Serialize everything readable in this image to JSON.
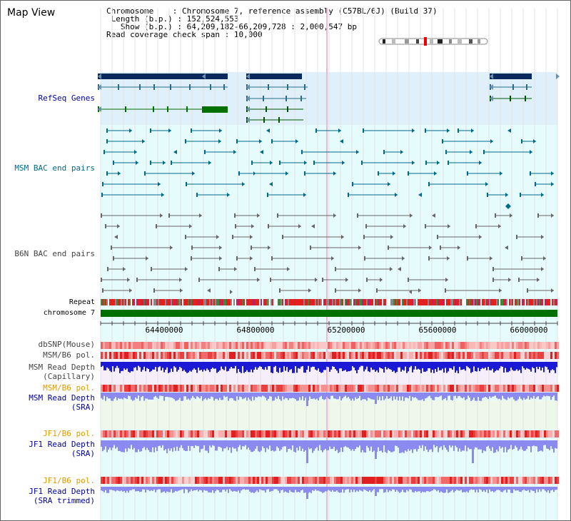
{
  "title": "Map View",
  "info": {
    "chromosome_label": "Chromosome",
    "chromosome_value": "Chromosome 7, reference assembly (C57BL/6J) (Build 37)",
    "length_label": "Length (b.p.)",
    "length_value": "152,524,553",
    "show_label": "Show (b.p.)",
    "show_value": "64,209,182-66,209,728 : 2,000,547 bp",
    "coverage_label": "Read coverage check span",
    "coverage_value": "10,000"
  },
  "tracks": {
    "refseq": "RefSeq Genes",
    "msm_bac": "MSM BAC end pairs",
    "b6n_bac": "B6N BAC end pairs",
    "repeat": "Repeat",
    "chromosome": "chromosome 7",
    "dbsnp": "dbSNP(Mouse)",
    "msm_b6_pol": "MSM/B6 pol.",
    "msm_depth_cap_1": "MSM Read Depth",
    "msm_depth_cap_2": "(Capillary)",
    "msm_b6_pol_2": "MSM/B6 pol.",
    "msm_depth_sra_1": "MSM Read Depth",
    "msm_depth_sra_2": "(SRA)",
    "jf1_b6_pol": "JF1/B6 pol.",
    "jf1_depth_1": "JF1 Read Depth",
    "jf1_depth_2": "(SRA)",
    "jf1_b6_pol_2": "JF1/B6 pol.",
    "jf1_trim_1": "JF1 Read Depth",
    "jf1_trim_2": "(SRA trimmed)"
  },
  "axis": {
    "ticks": [
      "64400000",
      "64800000",
      "65200000",
      "65600000",
      "66000000"
    ]
  },
  "colors": {
    "refseq_bg": "#dff0fb",
    "bac_bg": "#e6fbfb",
    "gene_dark": "#0a2a5e",
    "gene_green": "#007000",
    "msm_pair": "#006a8a",
    "b6n_pair": "#666666",
    "chromosome_bar": "#007000",
    "depth_blue": "#1a1ad6",
    "depth_light": "#8a8af0",
    "pol_red": "#f04040",
    "snp_pink": "#f88a8a"
  }
}
